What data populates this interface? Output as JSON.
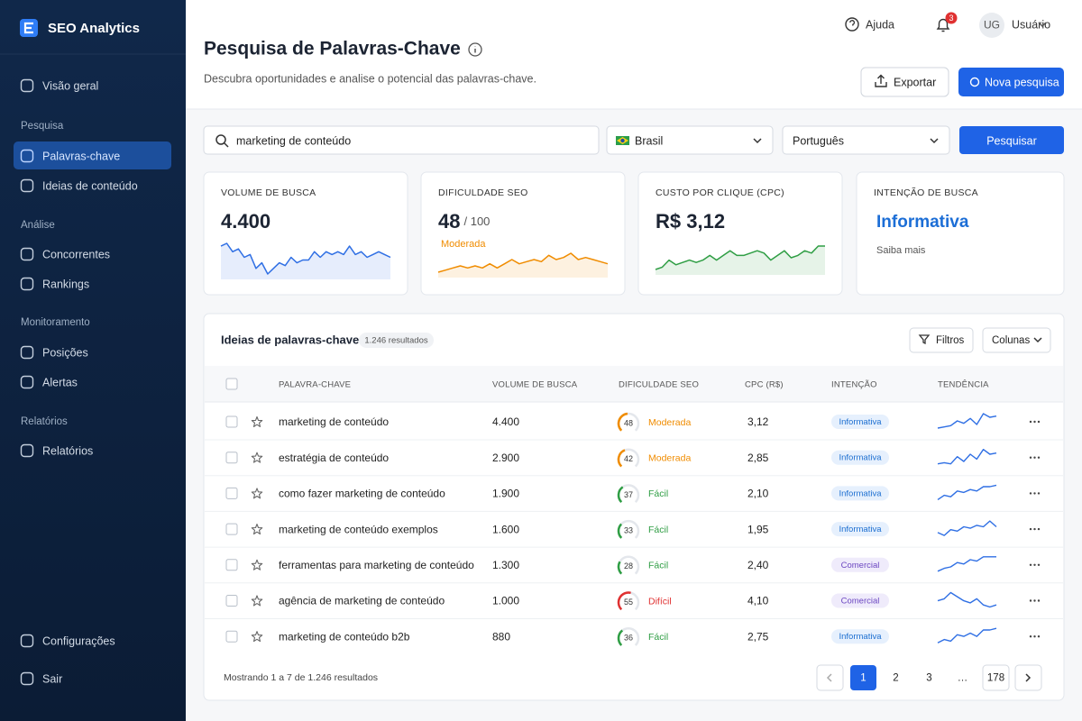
{
  "sidebar": {
    "brand": "SEO Analytics",
    "top": [
      "Visão geral"
    ],
    "sections": [
      {
        "title": "Pesquisa",
        "items": [
          "Palavras-chave",
          "Ideias de conteúdo"
        ]
      },
      {
        "title": "Análise",
        "items": [
          "Concorrentes",
          "Rankings"
        ]
      },
      {
        "title": "Monitoramento",
        "items": [
          "Posições",
          "Alertas"
        ]
      },
      {
        "title": "Relatórios",
        "items": [
          "Relatórios"
        ]
      }
    ],
    "bottom": [
      "Configurações",
      "Sair"
    ]
  },
  "header": {
    "help": "Ajuda",
    "notifications": "3",
    "avatar": "UG",
    "user": "Usuário",
    "title": "Pesquisa de Palavras-Chave",
    "subtitle": "Descubra oportunidades e analise o potencial das palavras-chave.",
    "export": "Exportar",
    "new_search": "Nova pesquisa"
  },
  "search": {
    "query": "marketing de conteúdo",
    "country": "Brasil",
    "language": "Português",
    "button": "Pesquisar"
  },
  "metrics": [
    {
      "label": "VOLUME DE BUSCA",
      "value": "4.400",
      "color": "#2f6fe4",
      "trend": [
        6,
        6.5,
        5,
        5.5,
        4,
        4.5,
        2,
        3,
        1,
        2,
        3,
        2.5,
        4,
        3,
        3.5,
        3.5,
        5,
        4,
        5,
        4.5,
        5,
        4.5,
        6,
        4.5,
        5,
        4,
        4.5,
        5,
        4.5,
        4
      ]
    },
    {
      "label": "DIFICULDADE SEO",
      "value": "48",
      "suffix": "/ 100",
      "note": "Moderada",
      "color": "#f08c00",
      "trend": [
        2,
        2.5,
        3,
        3.5,
        3,
        3.5,
        3,
        4,
        3,
        4,
        5,
        4,
        4.5,
        5,
        4.5,
        6,
        5,
        5.5,
        6.5,
        5,
        5.5,
        5,
        4.5,
        4
      ]
    },
    {
      "label": "CUSTO POR CLIQUE (CPC)",
      "value": "R$ 3,12",
      "color": "#2f9e44",
      "trend": [
        2,
        2.5,
        4,
        3,
        3.5,
        4,
        3.5,
        4,
        5,
        4,
        5,
        6,
        5,
        5,
        5.5,
        6,
        5.5,
        4,
        5,
        6,
        4.5,
        5,
        6,
        5.5,
        7,
        7
      ]
    },
    {
      "label": "INTENÇÃO DE BUSCA",
      "value": "Informativa",
      "note": "Saiba mais",
      "color": "#1c6ed6"
    }
  ],
  "table": {
    "title": "Ideias de palavras-chave",
    "count": "1.246 resultados",
    "filters": "Filtros",
    "columns_button": "Colunas",
    "columns": [
      "PALAVRA-CHAVE",
      "VOLUME DE BUSCA",
      "DIFICULDADE SEO",
      "CPC (R$)",
      "INTENÇÃO",
      "TENDÊNCIA"
    ],
    "rows": [
      {
        "keyword": "marketing de conteúdo",
        "volume": "4.400",
        "difficulty": 48,
        "level": "Moderada",
        "level_color": "#f08c00",
        "cpc": "3,12",
        "intent": "Informativa",
        "intent_color": "#1d6fd1",
        "intent_bg": "#e6f0fd",
        "trend": [
          2,
          2.5,
          3,
          5,
          4,
          6,
          3.5,
          8,
          6.5,
          7
        ]
      },
      {
        "keyword": "estratégia de conteúdo",
        "volume": "2.900",
        "difficulty": 42,
        "level": "Moderada",
        "level_color": "#f08c00",
        "cpc": "2,85",
        "intent": "Informativa",
        "intent_color": "#1d6fd1",
        "intent_bg": "#e6f0fd",
        "trend": [
          2,
          2.5,
          2,
          5,
          3,
          6,
          4,
          8,
          6,
          6.5
        ]
      },
      {
        "keyword": "como fazer marketing de conteúdo",
        "volume": "1.900",
        "difficulty": 37,
        "level": "Fácil",
        "level_color": "#2f9e44",
        "cpc": "2,10",
        "intent": "Informativa",
        "intent_color": "#1d6fd1",
        "intent_bg": "#e6f0fd",
        "trend": [
          2,
          3.5,
          3,
          5,
          4.5,
          5.5,
          5,
          6.5,
          6.5,
          7
        ]
      },
      {
        "keyword": "marketing de conteúdo exemplos",
        "volume": "1.600",
        "difficulty": 33,
        "level": "Fácil",
        "level_color": "#2f9e44",
        "cpc": "1,95",
        "intent": "Informativa",
        "intent_color": "#1d6fd1",
        "intent_bg": "#e6f0fd",
        "trend": [
          3,
          2,
          4,
          3.5,
          5,
          4.5,
          5.5,
          5,
          7,
          5
        ]
      },
      {
        "keyword": "ferramentas para marketing de conteúdo",
        "volume": "1.300",
        "difficulty": 28,
        "level": "Fácil",
        "level_color": "#2f9e44",
        "cpc": "2,40",
        "intent": "Comercial",
        "intent_color": "#6b46c1",
        "intent_bg": "#efebfb",
        "trend": [
          2,
          3,
          3.5,
          5,
          4.5,
          6,
          5.5,
          7,
          7,
          7
        ]
      },
      {
        "keyword": "agência de marketing de conteúdo",
        "volume": "1.000",
        "difficulty": 55,
        "level": "Difícil",
        "level_color": "#e03131",
        "cpc": "4,10",
        "intent": "Comercial",
        "intent_color": "#6b46c1",
        "intent_bg": "#efebfb",
        "trend": [
          5,
          5.5,
          7,
          6,
          5,
          4.5,
          5.5,
          4,
          3.5,
          4
        ]
      },
      {
        "keyword": "marketing de conteúdo b2b",
        "volume": "880",
        "difficulty": 36,
        "level": "Fácil",
        "level_color": "#2f9e44",
        "cpc": "2,75",
        "intent": "Informativa",
        "intent_color": "#1d6fd1",
        "intent_bg": "#e6f0fd",
        "trend": [
          2,
          3,
          2.5,
          4.5,
          4,
          5,
          4,
          6,
          6,
          6.5
        ]
      }
    ]
  },
  "footer": {
    "summary": "Mostrando 1 a 7 de 1.246 resultados",
    "pages": [
      "1",
      "2",
      "3",
      "…",
      "178"
    ]
  }
}
